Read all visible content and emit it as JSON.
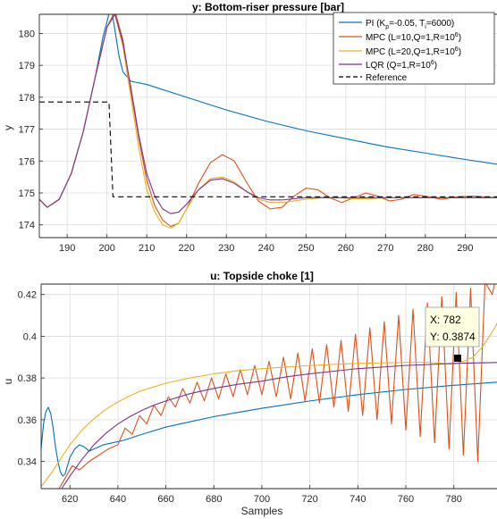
{
  "figure": {
    "background": "#ffffff",
    "grid_color": "#dcdcdc",
    "axes_color": "#262626"
  },
  "chart_data": [
    {
      "type": "line",
      "title": "y: Bottom-riser pressure [bar]",
      "xlabel": "",
      "ylabel": "y",
      "xlim": [
        183,
        298
      ],
      "ylim": [
        173.6,
        180.6
      ],
      "xticks": [
        190,
        200,
        210,
        220,
        230,
        240,
        250,
        260,
        270,
        280,
        290
      ],
      "yticks": [
        174,
        175,
        176,
        177,
        178,
        179,
        180
      ],
      "grid": true,
      "legend": {
        "placement": "top-right",
        "entries": [
          {
            "label": "PI (K",
            "sub": "p",
            "mid": "=-0.05, T",
            "sub2": "i",
            "tail": "=6000)",
            "sup": "",
            "end": ""
          },
          {
            "label": "MPC (L=10,Q=1,R=10",
            "sub": "",
            "mid": "",
            "sub2": "",
            "tail": "",
            "sup": "6",
            "end": ")"
          },
          {
            "label": "MPC (L=20,Q=1,R=10",
            "sub": "",
            "mid": "",
            "sub2": "",
            "tail": "",
            "sup": "6",
            "end": ")"
          },
          {
            "label": "LQR (Q=1,R=10",
            "sub": "",
            "mid": "",
            "sub2": "",
            "tail": "",
            "sup": "6",
            "end": ")"
          },
          {
            "label": "Reference",
            "sub": "",
            "mid": "",
            "sub2": "",
            "tail": "",
            "sup": "",
            "end": ""
          }
        ]
      },
      "series": [
        {
          "name": "PI (Kp=-0.05, Ti=6000)",
          "color": "#0072bd",
          "dash": "",
          "x": [
            183,
            185,
            188,
            191,
            194,
            197,
            199,
            200.5,
            201,
            202,
            203,
            204,
            206,
            210,
            220,
            230,
            240,
            250,
            260,
            270,
            280,
            290,
            298
          ],
          "y": [
            174.8,
            174.55,
            174.8,
            175.6,
            176.9,
            178.6,
            179.9,
            180.6,
            180.9,
            180.1,
            179.3,
            178.8,
            178.5,
            178.4,
            178.0,
            177.6,
            177.25,
            176.95,
            176.7,
            176.45,
            176.25,
            176.05,
            175.9
          ]
        },
        {
          "name": "MPC (L=10,Q=1,R=10^6)",
          "color": "#d95319",
          "dash": "",
          "x": [
            183,
            185,
            188,
            191,
            194,
            197,
            200,
            202,
            204,
            206,
            208,
            210,
            212,
            214,
            216,
            218,
            220,
            223,
            226,
            229,
            232,
            235,
            238,
            241,
            244,
            247,
            250,
            253,
            256,
            259,
            262,
            265,
            268,
            271,
            274,
            277,
            280,
            284,
            288,
            292,
            298
          ],
          "y": [
            174.8,
            174.55,
            174.8,
            175.6,
            176.9,
            178.6,
            180.2,
            180.7,
            179.8,
            178.2,
            176.7,
            175.4,
            174.6,
            174.15,
            173.95,
            174.05,
            174.5,
            175.3,
            175.95,
            176.2,
            176.0,
            175.35,
            174.75,
            174.5,
            174.55,
            174.9,
            175.15,
            175.1,
            174.85,
            174.7,
            174.85,
            175.0,
            174.9,
            174.75,
            174.8,
            174.95,
            174.9,
            174.8,
            174.88,
            174.9,
            174.85
          ]
        },
        {
          "name": "MPC (L=20,Q=1,R=10^6)",
          "color": "#edb120",
          "dash": "",
          "x": [
            183,
            185,
            188,
            191,
            194,
            197,
            200,
            202,
            204,
            206,
            208,
            210,
            212,
            214,
            216,
            218,
            220,
            223,
            226,
            229,
            232,
            235,
            238,
            241,
            244,
            247,
            250,
            254,
            258,
            262,
            266,
            270,
            276,
            282,
            290,
            298
          ],
          "y": [
            174.8,
            174.55,
            174.8,
            175.6,
            176.9,
            178.6,
            180.2,
            180.6,
            179.6,
            178.0,
            176.4,
            175.1,
            174.4,
            174.0,
            173.9,
            174.05,
            174.5,
            175.1,
            175.45,
            175.5,
            175.35,
            175.05,
            174.8,
            174.7,
            174.7,
            174.75,
            174.8,
            174.85,
            174.85,
            174.82,
            174.82,
            174.85,
            174.85,
            174.85,
            174.85,
            174.85
          ]
        },
        {
          "name": "LQR (Q=1,R=10^6)",
          "color": "#7e2f8e",
          "dash": "",
          "x": [
            183,
            185,
            188,
            191,
            194,
            197,
            200,
            202,
            204,
            206,
            208,
            210,
            212,
            214,
            216,
            218,
            220,
            223,
            226,
            229,
            232,
            235,
            238,
            241,
            244,
            247,
            250,
            255,
            260,
            270,
            280,
            290,
            298
          ],
          "y": [
            174.8,
            174.55,
            174.8,
            175.6,
            176.9,
            178.6,
            180.2,
            180.6,
            179.7,
            178.3,
            176.8,
            175.6,
            174.9,
            174.5,
            174.35,
            174.4,
            174.65,
            175.1,
            175.4,
            175.45,
            175.3,
            175.05,
            174.85,
            174.78,
            174.78,
            174.82,
            174.85,
            174.85,
            174.85,
            174.85,
            174.85,
            174.85,
            174.85
          ]
        },
        {
          "name": "Reference",
          "color": "#000000",
          "dash": "6,4",
          "x": [
            183,
            200.5,
            200.5,
            201.5,
            298
          ],
          "y": [
            177.85,
            177.85,
            177.85,
            174.88,
            174.88
          ]
        }
      ]
    },
    {
      "type": "line",
      "title": "u: Topside choke [1]",
      "xlabel": "Samples",
      "ylabel": "u",
      "xlim": [
        608,
        798
      ],
      "ylim": [
        0.327,
        0.425
      ],
      "xticks": [
        620,
        640,
        660,
        680,
        700,
        720,
        740,
        760,
        780
      ],
      "yticks": [
        0.34,
        0.36,
        0.38,
        0.4,
        0.42
      ],
      "grid": true,
      "datatip": {
        "x_label": "X: 782",
        "y_label": "Y: 0.3874",
        "x": 782,
        "y": 0.3874
      },
      "series": [
        {
          "name": "PI (Kp=-0.05, Ti=6000)",
          "color": "#0072bd",
          "dash": "",
          "x": [
            608,
            609,
            610,
            611,
            612,
            613,
            614,
            615,
            616,
            617,
            618,
            619,
            620,
            622,
            624,
            626,
            628,
            630,
            634,
            638,
            642,
            646,
            650,
            660,
            670,
            680,
            690,
            700,
            720,
            740,
            760,
            780,
            798
          ],
          "y": [
            0.346,
            0.358,
            0.364,
            0.366,
            0.363,
            0.356,
            0.347,
            0.34,
            0.335,
            0.333,
            0.334,
            0.338,
            0.342,
            0.346,
            0.348,
            0.347,
            0.345,
            0.346,
            0.348,
            0.349,
            0.35,
            0.3515,
            0.353,
            0.3565,
            0.359,
            0.3615,
            0.3635,
            0.3655,
            0.369,
            0.372,
            0.3745,
            0.3765,
            0.378
          ]
        },
        {
          "name": "MPC (L=10,Q=1,R=10^6)",
          "color": "#d95319",
          "dash": "",
          "x": [
            612,
            615,
            618,
            621,
            624,
            628,
            632,
            636,
            640,
            643,
            646,
            649,
            652,
            655,
            658,
            661,
            664,
            667,
            670,
            673,
            676,
            679,
            682,
            685,
            688,
            691,
            694,
            697,
            700,
            703,
            706,
            709,
            712,
            715,
            718,
            721,
            724,
            727,
            730,
            733,
            736,
            739,
            742,
            745,
            748,
            751,
            754,
            757,
            760,
            763,
            766,
            769,
            772,
            775,
            778,
            781,
            784,
            787,
            790,
            793,
            796,
            798
          ],
          "y": [
            0.318,
            0.326,
            0.332,
            0.338,
            0.336,
            0.34,
            0.343,
            0.346,
            0.348,
            0.356,
            0.353,
            0.362,
            0.358,
            0.367,
            0.362,
            0.371,
            0.366,
            0.375,
            0.368,
            0.378,
            0.369,
            0.38,
            0.37,
            0.382,
            0.371,
            0.384,
            0.372,
            0.386,
            0.372,
            0.388,
            0.371,
            0.39,
            0.37,
            0.392,
            0.369,
            0.394,
            0.368,
            0.396,
            0.366,
            0.398,
            0.364,
            0.401,
            0.362,
            0.404,
            0.36,
            0.407,
            0.358,
            0.41,
            0.355,
            0.413,
            0.352,
            0.416,
            0.349,
            0.419,
            0.346,
            0.421,
            0.343,
            0.423,
            0.34,
            0.426,
            0.42,
            0.43
          ]
        },
        {
          "name": "MPC (L=20,Q=1,R=10^6)",
          "color": "#edb120",
          "dash": "",
          "x": [
            608,
            612,
            616,
            620,
            625,
            630,
            635,
            640,
            645,
            650,
            660,
            670,
            680,
            690,
            700,
            720,
            740,
            760,
            770,
            775,
            780,
            784,
            788,
            792,
            796,
            798
          ],
          "y": [
            0.328,
            0.334,
            0.341,
            0.348,
            0.355,
            0.3605,
            0.365,
            0.3685,
            0.3715,
            0.374,
            0.3775,
            0.38,
            0.382,
            0.3835,
            0.3845,
            0.386,
            0.387,
            0.3875,
            0.3875,
            0.387,
            0.3865,
            0.388,
            0.39,
            0.395,
            0.402,
            0.406
          ]
        },
        {
          "name": "LQR (Q=1,R=10^6)",
          "color": "#7e2f8e",
          "dash": "",
          "x": [
            612,
            616,
            620,
            625,
            630,
            635,
            640,
            645,
            650,
            655,
            660,
            670,
            680,
            690,
            700,
            710,
            720,
            740,
            760,
            780,
            798
          ],
          "y": [
            0.318,
            0.326,
            0.333,
            0.341,
            0.348,
            0.3535,
            0.358,
            0.3615,
            0.3645,
            0.367,
            0.369,
            0.3725,
            0.375,
            0.377,
            0.3785,
            0.3805,
            0.382,
            0.3845,
            0.386,
            0.387,
            0.3874
          ]
        }
      ]
    }
  ]
}
